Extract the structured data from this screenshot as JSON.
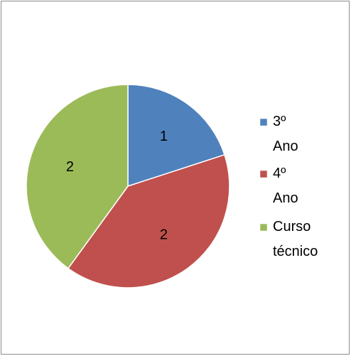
{
  "chart_data": {
    "type": "pie",
    "categories": [
      "3º Ano",
      "4º Ano",
      "Curso técnico"
    ],
    "values": [
      1,
      2,
      2
    ],
    "colors": [
      "#4f81bd",
      "#c0504d",
      "#9bbb59"
    ],
    "legend": "right"
  }
}
